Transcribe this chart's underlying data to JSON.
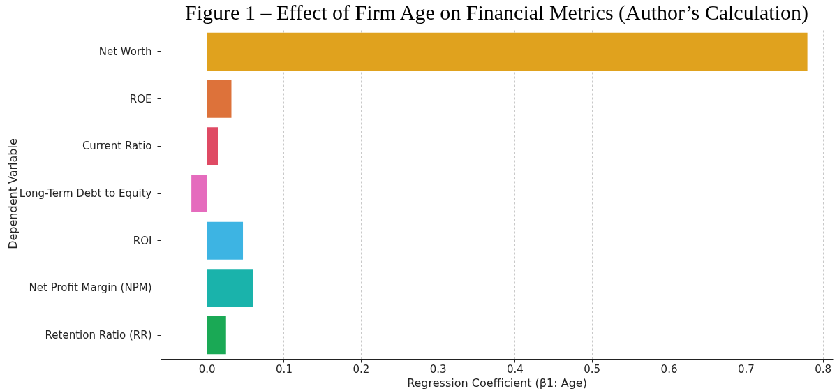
{
  "chart_data": {
    "type": "bar",
    "orientation": "horizontal",
    "title": "Figure 1 – Effect of Firm Age on Financial Metrics (Author’s Calculation)",
    "xlabel": "Regression Coefficient (β1: Age)",
    "ylabel": "Dependent Variable",
    "categories": [
      "Net Worth",
      "ROE",
      "Current Ratio",
      "Long-Term Debt to Equity",
      "ROI",
      "Net Profit Margin (NPM)",
      "Retention Ratio (RR)"
    ],
    "values": [
      0.78,
      0.032,
      0.015,
      -0.02,
      0.047,
      0.06,
      0.025
    ],
    "colors": [
      "#e0a21e",
      "#dd723a",
      "#df4a64",
      "#e56bbd",
      "#3db4e3",
      "#1ab3ab",
      "#1aa955"
    ],
    "xlim": [
      -0.06,
      0.813
    ],
    "xticks": [
      {
        "value": 0,
        "label": "0.0"
      },
      0.1,
      0.2,
      0.3,
      0.4,
      0.5,
      0.6,
      0.7,
      0.8
    ],
    "grid": "x",
    "legend": false
  }
}
